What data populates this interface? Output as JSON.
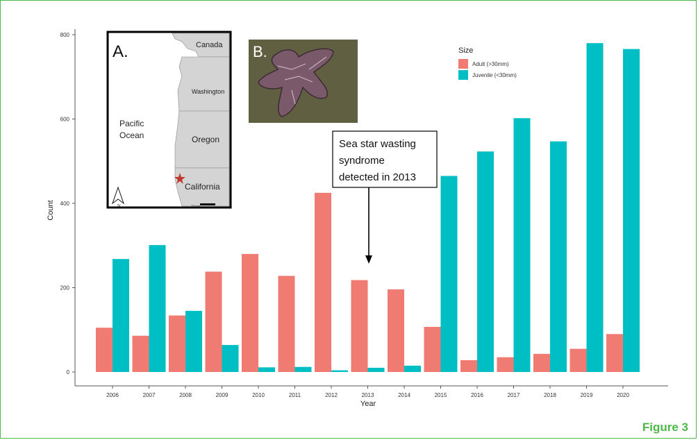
{
  "figure_label": "Figure 3",
  "colors": {
    "frame": "#4cb848",
    "adult": "#f07b72",
    "juvenile": "#00bfc4",
    "axis": "#555555",
    "star_marker": "#c0392b"
  },
  "chart_data": {
    "type": "bar",
    "title": "",
    "xlabel": "Year",
    "ylabel": "Count",
    "ylim": [
      0,
      800
    ],
    "yticks": [
      0,
      200,
      400,
      600,
      800
    ],
    "grid": false,
    "legend": {
      "title": "Size",
      "position": "top-right"
    },
    "categories": [
      "2006",
      "2007",
      "2008",
      "2009",
      "2010",
      "2011",
      "2012",
      "2013",
      "2014",
      "2015",
      "2016",
      "2017",
      "2018",
      "2019",
      "2020"
    ],
    "series": [
      {
        "name": "Adult (>30mm)",
        "color": "#f07b72",
        "values": [
          105,
          86,
          134,
          238,
          280,
          228,
          425,
          218,
          196,
          107,
          28,
          35,
          43,
          55,
          90
        ]
      },
      {
        "name": "Juvenile (<30mm)",
        "color": "#00bfc4",
        "values": [
          268,
          301,
          145,
          64,
          11,
          12,
          4,
          10,
          15,
          465,
          523,
          602,
          547,
          780,
          766
        ]
      }
    ],
    "annotation": {
      "lines": [
        "Sea star wasting",
        "syndrome",
        "detected in 2013"
      ],
      "target_category": "2013",
      "target_value": 260
    }
  },
  "inset_map": {
    "label": "A.",
    "places": [
      "Canada",
      "Washington",
      "Pacific",
      "Ocean",
      "Oregon",
      "California"
    ],
    "north": "N",
    "scale": "200 km"
  },
  "inset_photo": {
    "label": "B."
  }
}
